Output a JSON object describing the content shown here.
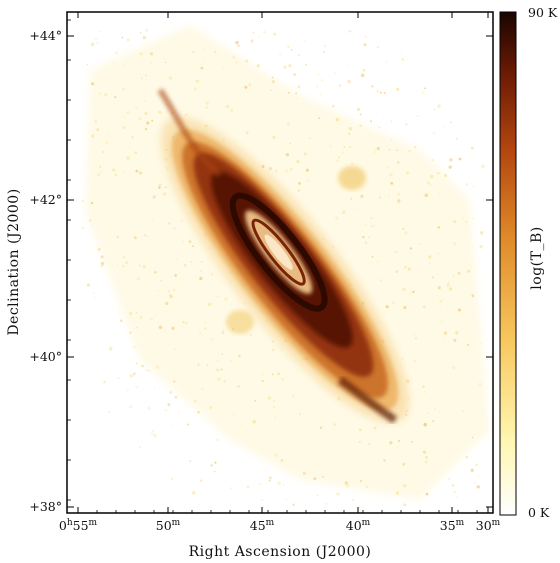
{
  "figure": {
    "xlabel": "Right Ascension (J2000)",
    "ylabel": "Declination (J2000)",
    "colorbar": {
      "label": "log(T_B)",
      "max_label": "90 K",
      "min_label": "0 K",
      "colors": [
        "#ffffff",
        "#fff6b0",
        "#f7c75e",
        "#e08a2a",
        "#b5480f",
        "#6a1a05",
        "#1a0500"
      ]
    },
    "x_ticks": [
      {
        "h": "0",
        "m": "55"
      },
      {
        "h": "",
        "m": "50"
      },
      {
        "h": "",
        "m": "45"
      },
      {
        "h": "",
        "m": "40"
      },
      {
        "h": "",
        "m": "35"
      },
      {
        "h": "",
        "m": "30"
      }
    ],
    "y_ticks": [
      {
        "text": "+44°"
      },
      {
        "text": "+42°"
      },
      {
        "text": "+40°"
      },
      {
        "text": "+38°"
      }
    ]
  }
}
